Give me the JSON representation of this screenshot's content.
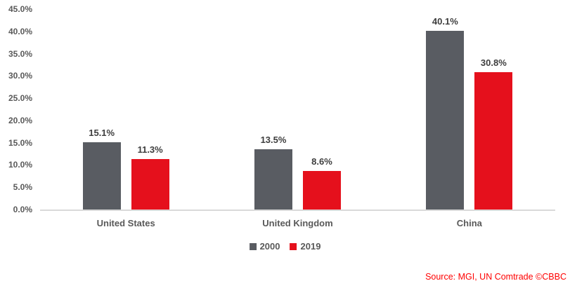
{
  "chart_data": {
    "type": "bar",
    "title": "",
    "categories": [
      "United States",
      "United Kingdom",
      "China"
    ],
    "series": [
      {
        "name": "2000",
        "color": "#595C62",
        "values": [
          15.1,
          13.5,
          40.1
        ],
        "labels": [
          "15.1%",
          "13.5%",
          "40.1%"
        ]
      },
      {
        "name": "2019",
        "color": "#E5101C",
        "values": [
          11.3,
          8.6,
          30.8
        ],
        "labels": [
          "11.3%",
          "8.6%",
          "30.8%"
        ]
      }
    ],
    "xlabel": "",
    "ylabel": "",
    "ylim": [
      0,
      45
    ],
    "yticks": [
      {
        "label": "0.0%",
        "value": 0
      },
      {
        "label": "5.0%",
        "value": 5
      },
      {
        "label": "10.0%",
        "value": 10
      },
      {
        "label": "15.0%",
        "value": 15
      },
      {
        "label": "20.0%",
        "value": 20
      },
      {
        "label": "25.0%",
        "value": 25
      },
      {
        "label": "30.0%",
        "value": 30
      },
      {
        "label": "35.0%",
        "value": 35
      },
      {
        "label": "40.0%",
        "value": 40
      },
      {
        "label": "45.0%",
        "value": 45
      }
    ],
    "grid": false,
    "legend_position": "bottom"
  },
  "source": {
    "text": "Source: MGI, UN Comtrade ©CBBC",
    "color": "#FF0000"
  },
  "colors": {
    "axis_text": "#595959",
    "data_label": "#3E3E3E",
    "baseline": "#D9D9D9",
    "background": "#FFFFFF"
  }
}
